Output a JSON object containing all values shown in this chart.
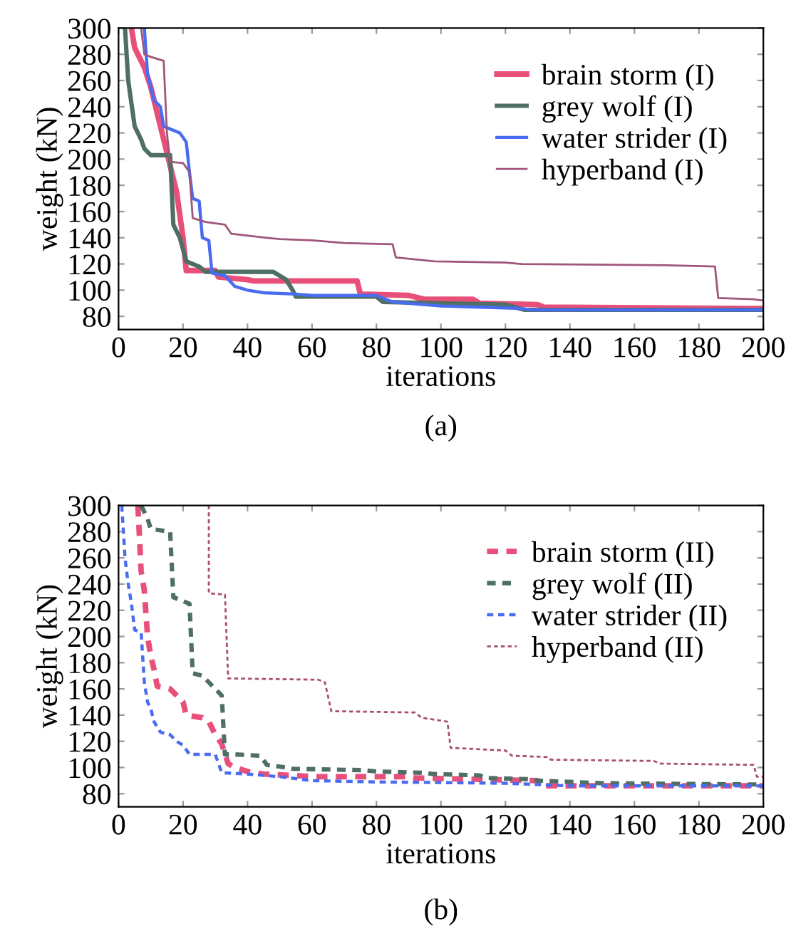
{
  "chart_data": [
    {
      "type": "line",
      "xlabel": "iterations",
      "ylabel": "weight (kN)",
      "xlim": [
        0,
        200
      ],
      "ylim": [
        70,
        300
      ],
      "xticks": [
        0,
        20,
        40,
        60,
        80,
        100,
        120,
        140,
        160,
        180,
        200
      ],
      "yticks": [
        80,
        100,
        120,
        140,
        160,
        180,
        200,
        220,
        240,
        260,
        280,
        300
      ],
      "legend": "top right",
      "line_style": "solid",
      "annotations": [
        "(a)"
      ],
      "series": [
        {
          "name": "brain storm (I)",
          "color": "#e8507a",
          "x": [
            4,
            5,
            6,
            8,
            10,
            12,
            14,
            16,
            18,
            20,
            21,
            30,
            31,
            40,
            42,
            74,
            75,
            90,
            95,
            110,
            112,
            130,
            132,
            200
          ],
          "values": [
            300,
            285,
            280,
            270,
            255,
            235,
            215,
            195,
            175,
            140,
            115,
            115,
            110,
            108,
            107,
            107,
            97,
            96,
            93,
            93,
            90,
            89,
            87,
            86
          ]
        },
        {
          "name": "grey wolf (I)",
          "color": "#4f6f64",
          "x": [
            2,
            3,
            5,
            7,
            8,
            10,
            16,
            17,
            19,
            21,
            25,
            27,
            48,
            52,
            54,
            55,
            80,
            82,
            100,
            120,
            126,
            200
          ],
          "values": [
            300,
            260,
            225,
            215,
            208,
            203,
            203,
            150,
            140,
            122,
            118,
            114,
            114,
            108,
            100,
            95,
            95,
            91,
            90,
            89,
            85,
            85
          ]
        },
        {
          "name": "water strider (I)",
          "color": "#4a6cf0",
          "x": [
            8,
            9,
            11,
            13,
            14,
            19,
            21,
            22,
            23,
            25,
            26,
            28,
            29,
            33,
            36,
            40,
            45,
            55,
            60,
            80,
            85,
            90,
            100,
            125,
            128,
            200
          ],
          "values": [
            300,
            265,
            245,
            240,
            225,
            220,
            213,
            190,
            170,
            168,
            140,
            138,
            113,
            111,
            103,
            100,
            98,
            97,
            96,
            96,
            91,
            90,
            88,
            86,
            85,
            85
          ]
        },
        {
          "name": "hyperband (I)",
          "color": "#a0557a",
          "x": [
            7,
            8,
            10,
            14,
            15,
            16,
            20,
            22,
            23,
            27,
            33,
            35,
            46,
            50,
            60,
            70,
            85,
            86,
            98,
            120,
            125,
            170,
            185,
            186,
            197,
            200
          ],
          "values": [
            300,
            280,
            278,
            275,
            220,
            198,
            197,
            190,
            155,
            152,
            150,
            143,
            140,
            139,
            138,
            136,
            135,
            125,
            122,
            121,
            120,
            119,
            118,
            94,
            93,
            92
          ]
        }
      ]
    },
    {
      "type": "line",
      "xlabel": "iterations",
      "ylabel": "weight (kN)",
      "xlim": [
        0,
        200
      ],
      "ylim": [
        70,
        300
      ],
      "xticks": [
        0,
        20,
        40,
        60,
        80,
        100,
        120,
        140,
        160,
        180,
        200
      ],
      "yticks": [
        80,
        100,
        120,
        140,
        160,
        180,
        200,
        220,
        240,
        260,
        280,
        300
      ],
      "legend": "top right",
      "line_style": "dotted",
      "annotations": [
        "(b)"
      ],
      "series": [
        {
          "name": "brain storm (II)",
          "color": "#e8507a",
          "x": [
            6,
            7,
            8,
            9,
            10,
            11,
            12,
            16,
            18,
            20,
            21,
            26,
            28,
            30,
            32,
            34,
            36,
            40,
            45,
            54,
            60,
            90,
            92,
            130,
            131,
            200
          ],
          "values": [
            300,
            250,
            235,
            200,
            185,
            175,
            162,
            160,
            155,
            150,
            140,
            138,
            135,
            125,
            118,
            103,
            100,
            97,
            95,
            94,
            93,
            93,
            92,
            90,
            86,
            86
          ]
        },
        {
          "name": "grey wolf (II)",
          "color": "#4f6f64",
          "x": [
            7,
            9,
            10,
            16,
            17,
            22,
            23,
            26,
            28,
            32,
            33,
            36,
            44,
            46,
            52,
            54,
            76,
            80,
            94,
            98,
            112,
            114,
            128,
            130,
            150,
            200
          ],
          "values": [
            300,
            290,
            282,
            280,
            230,
            225,
            172,
            170,
            165,
            155,
            110,
            110,
            109,
            102,
            100,
            99,
            98,
            97,
            96,
            95,
            94,
            92,
            91,
            90,
            88,
            87
          ]
        },
        {
          "name": "water strider (II)",
          "color": "#4a6cf0",
          "x": [
            1,
            2,
            3,
            4,
            5,
            7,
            8,
            9,
            10,
            11,
            13,
            16,
            18,
            20,
            22,
            30,
            32,
            40,
            50,
            60,
            80,
            120,
            140,
            200
          ],
          "values": [
            300,
            260,
            240,
            225,
            205,
            203,
            165,
            150,
            145,
            135,
            127,
            125,
            120,
            117,
            110,
            110,
            96,
            95,
            93,
            90,
            89,
            88,
            86,
            86
          ]
        },
        {
          "name": "hyperband (II)",
          "color": "#a8506a",
          "x": [
            28,
            28,
            33,
            34,
            62,
            64,
            66,
            92,
            94,
            102,
            103,
            120,
            122,
            133,
            134,
            166,
            168,
            197,
            198,
            200
          ],
          "values": [
            300,
            233,
            232,
            168,
            167,
            165,
            143,
            142,
            138,
            135,
            115,
            113,
            109,
            108,
            106,
            105,
            103,
            102,
            93,
            93
          ]
        }
      ]
    }
  ]
}
